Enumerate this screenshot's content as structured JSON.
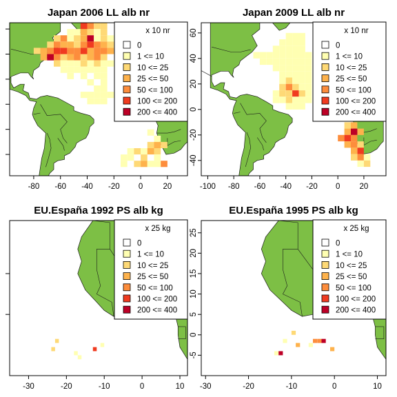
{
  "colors": {
    "land": "#7dbf45",
    "land_border": "#1a1a1a",
    "frame": "#000000",
    "scale": [
      "#ffffff",
      "#ffffb2",
      "#fed976",
      "#feb24c",
      "#fd8d3c",
      "#f03b20",
      "#bd0026"
    ]
  },
  "legend_labels_nr": [
    "0",
    "1 <= 10",
    "10 <= 25",
    "25 <= 50",
    "50 <= 100",
    "100 <= 200",
    "200 <= 400"
  ],
  "legend_labels_kg": [
    "0",
    "1 <= 10",
    "10 <= 25",
    "25 <= 50",
    "50 <= 100",
    "100 <= 200",
    "200 <= 400"
  ],
  "chart_data": [
    {
      "type": "heatmap",
      "title": "Japan 2006 LL alb nr",
      "legend_title": "x 10 nr",
      "xlim": [
        -98,
        35
      ],
      "ylim": [
        -52,
        70
      ],
      "x_ticks": [
        -80,
        -60,
        -40,
        -20,
        0,
        20
      ],
      "y_ticks": [],
      "legend_position": "top-right",
      "cell_size": 5,
      "cells": [
        [
          -45,
          65,
          5
        ],
        [
          -40,
          65,
          4
        ],
        [
          -35,
          65,
          2
        ],
        [
          -30,
          65,
          2
        ],
        [
          -55,
          60,
          1
        ],
        [
          -50,
          60,
          1
        ],
        [
          -45,
          60,
          3
        ],
        [
          -40,
          60,
          2
        ],
        [
          -35,
          60,
          1
        ],
        [
          -30,
          60,
          2
        ],
        [
          -65,
          55,
          2
        ],
        [
          -60,
          55,
          4
        ],
        [
          -55,
          55,
          1
        ],
        [
          -50,
          55,
          2
        ],
        [
          -45,
          55,
          3
        ],
        [
          -40,
          55,
          6
        ],
        [
          -35,
          55,
          1
        ],
        [
          -30,
          55,
          2
        ],
        [
          -25,
          55,
          1
        ],
        [
          -70,
          50,
          2
        ],
        [
          -65,
          50,
          4
        ],
        [
          -60,
          50,
          3
        ],
        [
          -55,
          50,
          3
        ],
        [
          -50,
          50,
          2
        ],
        [
          -45,
          50,
          4
        ],
        [
          -40,
          50,
          5
        ],
        [
          -35,
          50,
          4
        ],
        [
          -30,
          50,
          3
        ],
        [
          -25,
          50,
          2
        ],
        [
          -80,
          45,
          2
        ],
        [
          -75,
          45,
          3
        ],
        [
          -70,
          45,
          4
        ],
        [
          -65,
          45,
          5
        ],
        [
          -60,
          45,
          5
        ],
        [
          -55,
          45,
          4
        ],
        [
          -50,
          45,
          4
        ],
        [
          -45,
          45,
          5
        ],
        [
          -40,
          45,
          3
        ],
        [
          -35,
          45,
          4
        ],
        [
          -30,
          45,
          4
        ],
        [
          -25,
          45,
          3
        ],
        [
          -75,
          40,
          3
        ],
        [
          -70,
          40,
          6
        ],
        [
          -65,
          40,
          4
        ],
        [
          -60,
          40,
          2
        ],
        [
          -55,
          40,
          3
        ],
        [
          -50,
          40,
          4
        ],
        [
          -45,
          40,
          2
        ],
        [
          -40,
          40,
          3
        ],
        [
          -35,
          40,
          4
        ],
        [
          -30,
          40,
          2
        ],
        [
          -65,
          35,
          2
        ],
        [
          -60,
          35,
          1
        ],
        [
          -55,
          35,
          1
        ],
        [
          -50,
          35,
          1
        ],
        [
          -45,
          35,
          2
        ],
        [
          -40,
          35,
          1
        ],
        [
          -35,
          35,
          2
        ],
        [
          -30,
          35,
          1
        ],
        [
          -25,
          35,
          1
        ],
        [
          -60,
          30,
          1
        ],
        [
          -55,
          30,
          1
        ],
        [
          -50,
          30,
          1
        ],
        [
          -45,
          30,
          1
        ],
        [
          -40,
          30,
          1
        ],
        [
          -35,
          30,
          1
        ],
        [
          -30,
          30,
          1
        ],
        [
          -55,
          25,
          1
        ],
        [
          -45,
          25,
          1
        ],
        [
          -35,
          25,
          1
        ],
        [
          -30,
          25,
          1
        ],
        [
          -40,
          20,
          1
        ],
        [
          -30,
          20,
          1
        ],
        [
          -35,
          15,
          1
        ],
        [
          -30,
          15,
          1
        ],
        [
          -45,
          10,
          1
        ],
        [
          -40,
          10,
          1
        ],
        [
          -35,
          10,
          1
        ],
        [
          -30,
          10,
          1
        ],
        [
          -25,
          10,
          1
        ],
        [
          -40,
          5,
          1
        ],
        [
          -35,
          5,
          1
        ],
        [
          -30,
          5,
          1
        ],
        [
          5,
          -20,
          1
        ],
        [
          10,
          -25,
          1
        ],
        [
          5,
          -30,
          2
        ],
        [
          10,
          -30,
          3
        ],
        [
          15,
          -30,
          2
        ],
        [
          -10,
          -35,
          1
        ],
        [
          -5,
          -35,
          2
        ],
        [
          0,
          -35,
          1
        ],
        [
          5,
          -35,
          3
        ],
        [
          10,
          -35,
          2
        ],
        [
          -15,
          -40,
          1
        ],
        [
          -10,
          -40,
          1
        ],
        [
          0,
          -40,
          2
        ],
        [
          10,
          -40,
          1
        ],
        [
          -15,
          -45,
          1
        ],
        [
          -5,
          -45,
          2
        ],
        [
          0,
          -45,
          3
        ],
        [
          5,
          -45,
          1
        ],
        [
          10,
          -45,
          1
        ],
        [
          15,
          -45,
          4
        ]
      ]
    },
    {
      "type": "heatmap",
      "title": "Japan 2009 LL alb nr",
      "legend_title": "x 10 nr",
      "xlim": [
        -105,
        37
      ],
      "ylim": [
        -52,
        68
      ],
      "x_ticks": [
        -100,
        -80,
        -60,
        -40,
        -20,
        0,
        20
      ],
      "y_ticks": [
        -40,
        -20,
        0,
        20,
        40,
        60
      ],
      "legend_position": "top-right",
      "cell_size": 5,
      "cells": [
        [
          -40,
          55,
          1
        ],
        [
          -35,
          55,
          1
        ],
        [
          -30,
          55,
          1
        ],
        [
          -45,
          50,
          1
        ],
        [
          -40,
          50,
          1
        ],
        [
          -35,
          50,
          1
        ],
        [
          -30,
          50,
          1
        ],
        [
          -50,
          45,
          1
        ],
        [
          -45,
          45,
          1
        ],
        [
          -40,
          45,
          1
        ],
        [
          -35,
          45,
          1
        ],
        [
          -30,
          45,
          1
        ],
        [
          -65,
          40,
          1
        ],
        [
          -60,
          40,
          1
        ],
        [
          -55,
          40,
          1
        ],
        [
          -50,
          40,
          1
        ],
        [
          -45,
          40,
          1
        ],
        [
          -40,
          40,
          1
        ],
        [
          -35,
          40,
          1
        ],
        [
          -30,
          40,
          1
        ],
        [
          -25,
          40,
          1
        ],
        [
          -60,
          35,
          1
        ],
        [
          -55,
          35,
          1
        ],
        [
          -50,
          35,
          1
        ],
        [
          -45,
          35,
          1
        ],
        [
          -40,
          35,
          1
        ],
        [
          -35,
          35,
          1
        ],
        [
          -30,
          35,
          1
        ],
        [
          -25,
          35,
          1
        ],
        [
          -50,
          30,
          1
        ],
        [
          -45,
          30,
          1
        ],
        [
          -40,
          30,
          1
        ],
        [
          -35,
          30,
          1
        ],
        [
          -30,
          30,
          1
        ],
        [
          -25,
          30,
          1
        ],
        [
          -45,
          25,
          1
        ],
        [
          -40,
          25,
          1
        ],
        [
          -35,
          25,
          1
        ],
        [
          -30,
          25,
          1
        ],
        [
          -25,
          25,
          1
        ],
        [
          -45,
          20,
          1
        ],
        [
          -40,
          20,
          2
        ],
        [
          -35,
          20,
          1
        ],
        [
          -30,
          20,
          1
        ],
        [
          -25,
          20,
          1
        ],
        [
          -45,
          15,
          2
        ],
        [
          -40,
          15,
          4
        ],
        [
          -35,
          15,
          2
        ],
        [
          -30,
          15,
          1
        ],
        [
          -25,
          15,
          1
        ],
        [
          -50,
          10,
          1
        ],
        [
          -45,
          10,
          2
        ],
        [
          -40,
          10,
          2
        ],
        [
          -35,
          10,
          5
        ],
        [
          -30,
          10,
          2
        ],
        [
          -25,
          10,
          1
        ],
        [
          -50,
          5,
          1
        ],
        [
          -45,
          5,
          1
        ],
        [
          -40,
          5,
          2
        ],
        [
          -35,
          5,
          1
        ],
        [
          -30,
          5,
          1
        ],
        [
          -25,
          5,
          1
        ],
        [
          -40,
          0,
          1
        ],
        [
          -35,
          0,
          1
        ],
        [
          -30,
          0,
          1
        ],
        [
          5,
          -15,
          2
        ],
        [
          10,
          -15,
          3
        ],
        [
          5,
          -20,
          3
        ],
        [
          10,
          -20,
          6
        ],
        [
          15,
          -20,
          3
        ],
        [
          0,
          -25,
          4
        ],
        [
          5,
          -25,
          5
        ],
        [
          10,
          -25,
          4
        ],
        [
          5,
          -30,
          3
        ],
        [
          10,
          -30,
          4
        ],
        [
          15,
          -30,
          2
        ],
        [
          10,
          -35,
          3
        ],
        [
          15,
          -35,
          5
        ],
        [
          10,
          -40,
          2
        ],
        [
          15,
          -40,
          4
        ],
        [
          20,
          -40,
          1
        ],
        [
          15,
          -45,
          1
        ],
        [
          20,
          -45,
          2
        ]
      ]
    },
    {
      "type": "heatmap",
      "title": "EU.España 1992 PS alb kg",
      "legend_title": "x 25 kg",
      "xlim": [
        -35,
        12
      ],
      "ylim": [
        -10,
        28
      ],
      "x_ticks": [
        -30,
        -20,
        -10,
        0,
        10
      ],
      "y_ticks": [],
      "legend_position": "top-right",
      "cell_size": 1,
      "cells": [
        [
          -23,
          -2,
          2
        ],
        [
          -24,
          -4,
          2
        ],
        [
          -18,
          -5,
          1
        ],
        [
          -17,
          -6,
          1
        ],
        [
          -13,
          -4,
          5
        ],
        [
          -11,
          -3,
          1
        ]
      ]
    },
    {
      "type": "heatmap",
      "title": "EU.España 1995 PS alb kg",
      "legend_title": "x 25 kg",
      "xlim": [
        -31,
        12
      ],
      "ylim": [
        -10,
        28
      ],
      "x_ticks": [
        -30,
        -20,
        -10,
        0,
        10
      ],
      "y_ticks": [
        -5,
        0,
        5,
        10,
        15,
        20,
        25
      ],
      "legend_position": "top-right",
      "cell_size": 1,
      "cells": [
        [
          -10,
          0,
          2
        ],
        [
          -12,
          -2,
          1
        ],
        [
          -9,
          -3,
          3
        ],
        [
          -6,
          -3,
          1
        ],
        [
          -5,
          -2,
          4
        ],
        [
          -4,
          -2,
          4
        ],
        [
          -3,
          -2,
          6
        ],
        [
          -1,
          -4,
          3
        ],
        [
          -14,
          -5,
          1
        ],
        [
          -13,
          -5,
          6
        ]
      ]
    }
  ]
}
